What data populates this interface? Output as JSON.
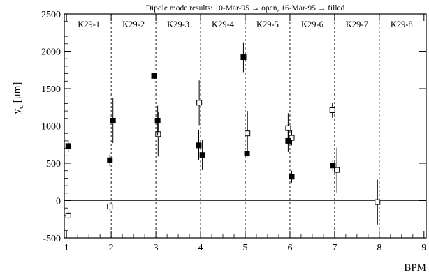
{
  "chart_data": {
    "type": "scatter",
    "title": "Dipole mode results: 10-Mar-95 → open, 16-Mar-95 → filled",
    "xlabel": "BPM",
    "ylabel": "y_c [μm]",
    "ylabel_main": "y",
    "ylabel_sub": "c",
    "ylabel_unit": " [μm]",
    "xlim": [
      0.95,
      9.05
    ],
    "ylim": [
      -500,
      2500
    ],
    "x_ticks": [
      1,
      2,
      3,
      4,
      5,
      6,
      7,
      8,
      9
    ],
    "y_ticks": [
      -500,
      0,
      500,
      1000,
      1500,
      2000,
      2500
    ],
    "grid": false,
    "reference_line_y": 0,
    "segment_boundaries": [
      2,
      3,
      4,
      5,
      6,
      7,
      8
    ],
    "segments": [
      {
        "label": "K29-1",
        "x": 1.5
      },
      {
        "label": "K29-2",
        "x": 2.5
      },
      {
        "label": "K29-3",
        "x": 3.5
      },
      {
        "label": "K29-4",
        "x": 4.5
      },
      {
        "label": "K29-5",
        "x": 5.5
      },
      {
        "label": "K29-6",
        "x": 6.5
      },
      {
        "label": "K29-7",
        "x": 7.5
      },
      {
        "label": "K29-8",
        "x": 8.5
      }
    ],
    "series": [
      {
        "marker": "open-square",
        "points": [
          {
            "x": 1.04,
            "y": -200,
            "err": 50
          },
          {
            "x": 1.97,
            "y": -80,
            "err": 50
          },
          {
            "x": 3.05,
            "y": 890,
            "err": 300
          },
          {
            "x": 3.97,
            "y": 1310,
            "err": 300
          },
          {
            "x": 5.05,
            "y": 900,
            "err": 300
          },
          {
            "x": 5.96,
            "y": 970,
            "err": 200
          },
          {
            "x": 6.04,
            "y": 840,
            "err": 100
          },
          {
            "x": 6.95,
            "y": 1210,
            "err": 100
          },
          {
            "x": 7.05,
            "y": 410,
            "err": 300
          },
          {
            "x": 7.96,
            "y": -20,
            "err": 300
          }
        ]
      },
      {
        "marker": "filled-square",
        "points": [
          {
            "x": 1.04,
            "y": 730,
            "err": 80
          },
          {
            "x": 1.97,
            "y": 540,
            "err": 80
          },
          {
            "x": 2.04,
            "y": 1070,
            "err": 300
          },
          {
            "x": 2.96,
            "y": 1670,
            "err": 300
          },
          {
            "x": 3.04,
            "y": 1070,
            "err": 200
          },
          {
            "x": 3.96,
            "y": 740,
            "err": 200
          },
          {
            "x": 4.04,
            "y": 610,
            "err": 200
          },
          {
            "x": 4.96,
            "y": 1920,
            "err": 200
          },
          {
            "x": 5.04,
            "y": 630,
            "err": 60
          },
          {
            "x": 5.96,
            "y": 800,
            "err": 150
          },
          {
            "x": 6.04,
            "y": 320,
            "err": 80
          },
          {
            "x": 6.96,
            "y": 470,
            "err": 80
          }
        ]
      }
    ]
  }
}
